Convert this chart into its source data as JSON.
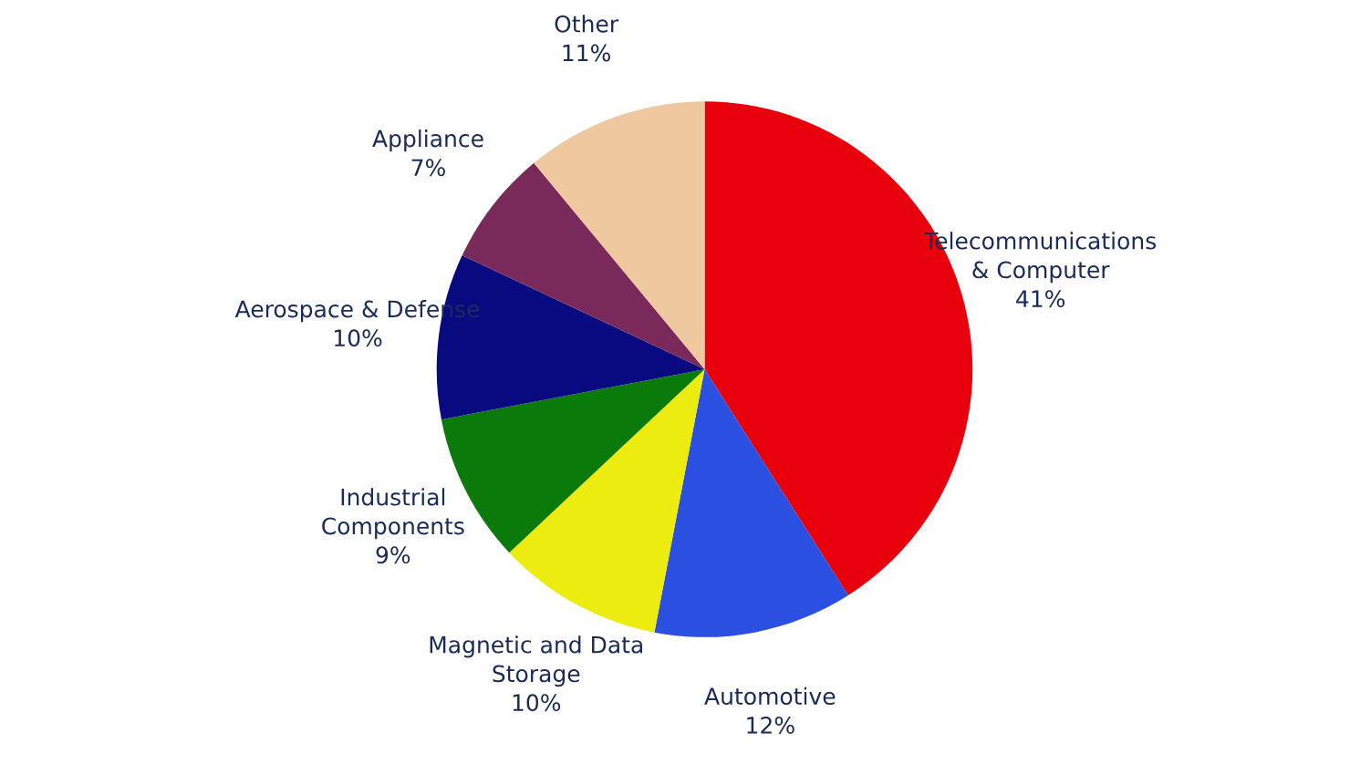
{
  "chart_data": {
    "type": "pie",
    "categories": [
      "Telecommunications\n& Computer",
      "Automotive",
      "Magnetic and Data\nStorage",
      "Industrial\nComponents",
      "Aerospace & Defense",
      "Appliance",
      "Other"
    ],
    "values": [
      41,
      12,
      10,
      9,
      10,
      7,
      11
    ],
    "colors": [
      "#e8000c",
      "#2b4fe0",
      "#ecec10",
      "#0a7a0a",
      "#0a0a80",
      "#7a2a5a",
      "#f0c8a0"
    ],
    "value_labels": [
      "41%",
      "12%",
      "10%",
      "9%",
      "10%",
      "7%",
      "11%"
    ]
  }
}
